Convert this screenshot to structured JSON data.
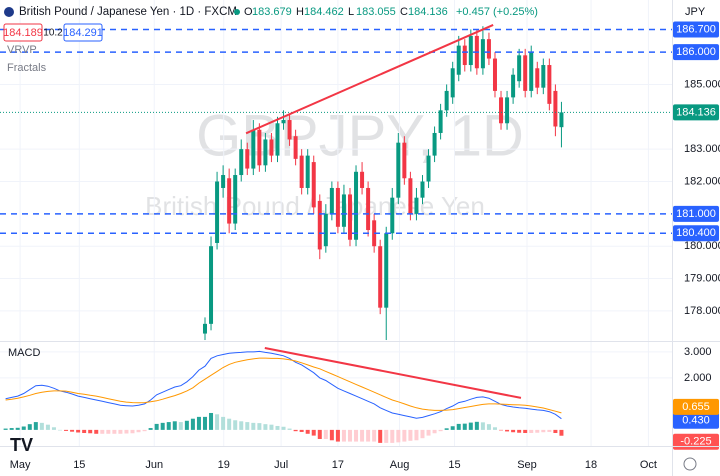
{
  "header": {
    "symbol": "British Pound / Japanese Yen · 1D · FXCM",
    "bid": "184.189",
    "spread": "10.2",
    "ask": "184.291",
    "ohlc_letters": [
      "O",
      "H",
      "L",
      "C"
    ],
    "change": "+0.457 (+0.25%)",
    "indicators": [
      "VRVP",
      "Fractals"
    ],
    "currency": "JPY"
  },
  "chart_data": [
    {
      "type": "candlestick",
      "watermark": "GBPJPY, 1D",
      "watermark_subtitle": "British Pound / Japanese Yen",
      "up_color": "#089981",
      "down_color": "#f23645",
      "grid": true,
      "xlim": [
        -0.93,
        110.3
      ],
      "ylim": [
        177.07,
        187.61
      ],
      "xticks": [
        {
          "value": 2.4,
          "label": "May"
        },
        {
          "value": 12.2,
          "label": "15"
        },
        {
          "value": 24.6,
          "label": "Jun"
        },
        {
          "value": 36.1,
          "label": "19"
        },
        {
          "value": 45.6,
          "label": "Jul"
        },
        {
          "value": 55,
          "label": "17"
        },
        {
          "value": 65.2,
          "label": "Aug"
        },
        {
          "value": 74.3,
          "label": "15"
        },
        {
          "value": 86.3,
          "label": "Sep"
        },
        {
          "value": 96.9,
          "label": "18"
        },
        {
          "value": 106.4,
          "label": "Oct"
        }
      ],
      "yticks": [
        {
          "value": 185,
          "label": "185.000"
        },
        {
          "value": 183,
          "label": "183.000"
        },
        {
          "value": 182,
          "label": "182.000"
        },
        {
          "value": 180,
          "label": "180.000"
        },
        {
          "value": 179,
          "label": "179.000"
        },
        {
          "value": 178,
          "label": "178.000"
        }
      ],
      "levels": [
        {
          "value": 186.7,
          "label": "186.700"
        },
        {
          "value": 186,
          "label": "186.000"
        },
        {
          "value": 181,
          "label": "181.000"
        },
        {
          "value": 180.4,
          "label": "180.400"
        }
      ],
      "level_color": "#2962ff",
      "trendline": {
        "color": "#f23645",
        "x": [
          39.8,
          80.7
        ],
        "y": [
          183.49,
          186.84
        ]
      },
      "x": [
        33,
        34,
        35,
        36,
        37,
        38,
        39,
        40,
        41,
        42,
        43,
        44,
        45,
        46,
        47,
        48,
        49,
        50,
        51,
        52,
        53,
        54,
        55,
        56,
        57,
        58,
        59,
        60,
        61,
        62,
        63,
        64,
        65,
        66,
        67,
        68,
        69,
        70,
        71,
        72,
        73,
        74,
        75,
        76,
        77,
        78,
        79,
        80,
        81,
        82,
        83,
        84,
        85,
        86,
        87,
        88,
        89,
        90,
        91,
        92
      ],
      "open": [
        177.3,
        177.6,
        180.1,
        181.8,
        182.1,
        180.7,
        182.2,
        183.0,
        182.4,
        183.6,
        182.5,
        183.3,
        182.8,
        183.8,
        183.9,
        183.4,
        182.8,
        181.8,
        182.6,
        181.4,
        180.0,
        181.0,
        181.8,
        180.6,
        181.6,
        180.2,
        182.3,
        181.8,
        180.8,
        180.0,
        178.1,
        180.4,
        181.5,
        183.2,
        182.1,
        181.0,
        181.5,
        182.0,
        182.8,
        183.5,
        184.2,
        184.6,
        185.3,
        186.2,
        185.6,
        186.5,
        185.5,
        186.4,
        185.8,
        184.6,
        183.8,
        184.6,
        185.1,
        185.9,
        184.8,
        185.5,
        184.9,
        185.6,
        184.8,
        183.679
      ],
      "high": [
        177.8,
        180.3,
        182.3,
        182.5,
        182.4,
        182.4,
        183.3,
        183.2,
        183.9,
        183.8,
        183.5,
        183.5,
        184.0,
        184.2,
        184.1,
        183.6,
        183.0,
        183.0,
        182.8,
        181.6,
        181.3,
        182.0,
        182.0,
        181.9,
        181.8,
        182.5,
        182.6,
        182.0,
        181.0,
        180.2,
        180.6,
        181.8,
        183.5,
        183.4,
        182.3,
        181.8,
        182.2,
        183.0,
        183.7,
        184.4,
        185.0,
        185.7,
        186.5,
        186.4,
        186.7,
        186.7,
        186.8,
        186.6,
        186.0,
        184.8,
        184.8,
        185.5,
        186.1,
        186.1,
        186.2,
        185.7,
        185.8,
        185.8,
        185.0,
        184.462
      ],
      "low": [
        177.1,
        177.4,
        179.9,
        181.5,
        180.4,
        180.5,
        182.0,
        182.2,
        182.2,
        182.3,
        182.3,
        182.6,
        182.6,
        183.6,
        183.1,
        182.5,
        181.6,
        181.6,
        181.0,
        179.6,
        179.8,
        180.8,
        180.4,
        180.4,
        180.0,
        180.0,
        181.6,
        180.3,
        179.8,
        177.9,
        177.1,
        180.2,
        181.3,
        181.9,
        180.8,
        180.8,
        181.3,
        181.8,
        182.6,
        183.3,
        184.0,
        184.4,
        185.1,
        185.4,
        185.4,
        185.3,
        185.3,
        185.6,
        184.6,
        183.6,
        183.6,
        184.4,
        184.9,
        184.6,
        184.6,
        184.7,
        184.7,
        184.2,
        183.4,
        183.055
      ],
      "close": [
        177.6,
        180.0,
        182.0,
        182.2,
        180.7,
        182.2,
        183.0,
        182.4,
        183.6,
        182.5,
        183.3,
        182.8,
        183.8,
        183.9,
        183.3,
        182.7,
        181.8,
        182.8,
        181.2,
        179.9,
        181.0,
        181.8,
        180.6,
        181.6,
        180.2,
        182.3,
        181.8,
        180.5,
        180.0,
        178.1,
        180.4,
        181.5,
        183.2,
        182.1,
        181.0,
        181.5,
        182.0,
        182.8,
        183.5,
        184.2,
        184.8,
        185.5,
        186.2,
        185.6,
        186.5,
        185.5,
        186.4,
        185.8,
        184.8,
        183.8,
        184.6,
        185.3,
        185.9,
        184.8,
        186.0,
        184.9,
        185.6,
        184.4,
        183.7,
        184.136
      ]
    },
    {
      "type": "macd",
      "title": "MACD",
      "ylim": [
        -0.62,
        3.38
      ],
      "yticks": [
        {
          "value": 3,
          "label": "3.000"
        },
        {
          "value": 2,
          "label": "2.000"
        }
      ],
      "trendline": {
        "color": "#f23645",
        "x": [
          42.9,
          85.3
        ],
        "y": [
          3.15,
          1.23
        ]
      },
      "series": [
        {
          "color": "#2962ff",
          "last_value_label": "0.430",
          "values": [
            1.2,
            1.25,
            1.3,
            1.4,
            1.55,
            1.7,
            1.72,
            1.68,
            1.6,
            1.5,
            1.45,
            1.38,
            1.3,
            1.25,
            1.2,
            1.15,
            1.1,
            1.05,
            1.0,
            0.95,
            0.93,
            0.92,
            0.95,
            1.0,
            1.15,
            1.35,
            1.45,
            1.55,
            1.65,
            1.7,
            1.85,
            2.05,
            2.3,
            2.45,
            2.75,
            2.85,
            2.9,
            2.95,
            2.97,
            2.98,
            3.0,
            3.0,
            3.02,
            2.98,
            2.95,
            2.9,
            2.85,
            2.75,
            2.6,
            2.5,
            2.35,
            2.2,
            2.0,
            1.9,
            1.75,
            1.6,
            1.5,
            1.4,
            1.3,
            1.2,
            1.1,
            1.0,
            0.85,
            0.75,
            0.65,
            0.6,
            0.55,
            0.5,
            0.45,
            0.48,
            0.55,
            0.62,
            0.7,
            0.82,
            0.92,
            1.05,
            1.1,
            1.18,
            1.25,
            1.27,
            1.22,
            1.1,
            0.98,
            0.92,
            0.88,
            0.85,
            0.83,
            0.8,
            0.77,
            0.75,
            0.7,
            0.6,
            0.43
          ]
        },
        {
          "color": "#ff9800",
          "values": [
            1.15,
            1.18,
            1.22,
            1.27,
            1.33,
            1.4,
            1.45,
            1.48,
            1.5,
            1.5,
            1.49,
            1.45,
            1.4,
            1.37,
            1.33,
            1.3,
            1.25,
            1.2,
            1.15,
            1.1,
            1.07,
            1.05,
            1.04,
            1.05,
            1.08,
            1.12,
            1.18,
            1.25,
            1.32,
            1.4,
            1.5,
            1.62,
            1.8,
            1.95,
            2.1,
            2.25,
            2.4,
            2.52,
            2.6,
            2.65,
            2.7,
            2.73,
            2.76,
            2.76,
            2.75,
            2.75,
            2.73,
            2.7,
            2.65,
            2.58,
            2.5,
            2.42,
            2.35,
            2.25,
            2.15,
            2.05,
            1.95,
            1.85,
            1.75,
            1.65,
            1.55,
            1.45,
            1.35,
            1.25,
            1.15,
            1.08,
            1.0,
            0.92,
            0.85,
            0.8,
            0.77,
            0.75,
            0.75,
            0.76,
            0.78,
            0.82,
            0.86,
            0.9,
            0.94,
            0.98,
            1.0,
            1.0,
            0.99,
            0.98,
            0.97,
            0.96,
            0.95,
            0.92,
            0.88,
            0.84,
            0.78,
            0.72,
            0.655
          ]
        },
        {
          "type": "histogram",
          "colors": [
            "#26a69a",
            "#b2dfdb",
            "#ffcdd2",
            "#ff5252"
          ],
          "values": [
            0.05,
            0.07,
            0.08,
            0.13,
            0.22,
            0.3,
            0.27,
            0.2,
            0.1,
            0,
            -0.04,
            -0.07,
            -0.1,
            -0.12,
            -0.13,
            -0.15,
            -0.15,
            -0.15,
            -0.15,
            -0.15,
            -0.14,
            -0.13,
            -0.09,
            -0.05,
            0.07,
            0.23,
            0.27,
            0.3,
            0.33,
            0.3,
            0.35,
            0.43,
            0.5,
            0.5,
            0.65,
            0.6,
            0.5,
            0.43,
            0.37,
            0.33,
            0.3,
            0.27,
            0.26,
            0.22,
            0.2,
            0.15,
            0.12,
            0.05,
            -0.05,
            -0.08,
            -0.15,
            -0.22,
            -0.35,
            -0.35,
            -0.4,
            -0.45,
            -0.45,
            -0.45,
            -0.45,
            -0.45,
            -0.45,
            -0.45,
            -0.5,
            -0.5,
            -0.5,
            -0.48,
            -0.45,
            -0.42,
            -0.4,
            -0.32,
            -0.22,
            -0.13,
            -0.05,
            0.06,
            0.14,
            0.23,
            0.24,
            0.28,
            0.31,
            0.29,
            0.22,
            0.1,
            -0.01,
            -0.06,
            -0.09,
            -0.11,
            -0.12,
            -0.12,
            -0.11,
            -0.09,
            -0.08,
            -0.12,
            -0.225
          ]
        }
      ]
    }
  ]
}
